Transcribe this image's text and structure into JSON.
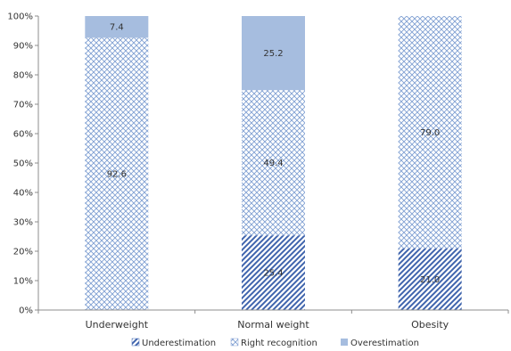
{
  "chart_data": {
    "type": "bar",
    "stacked": "percent",
    "categories": [
      "Underweight",
      "Normal weight",
      "Obesity"
    ],
    "series": [
      {
        "name": "Underestimation",
        "values": [
          null,
          25.4,
          21.0
        ],
        "labels": [
          "",
          "25.4",
          "21.0"
        ],
        "color": "#4a70b8",
        "pattern": "diagonal-stripes"
      },
      {
        "name": "Right recognition",
        "values": [
          92.6,
          49.4,
          79.0
        ],
        "labels": [
          "92.6",
          "49.4",
          "79.0"
        ],
        "color": "#8fa8d8",
        "pattern": "crosshatch"
      },
      {
        "name": "Overestimation",
        "values": [
          7.4,
          25.2,
          null
        ],
        "labels": [
          "7.4",
          "25.2",
          ""
        ],
        "color": "#a6bddf",
        "pattern": "solid"
      }
    ],
    "ylim": [
      0,
      100
    ],
    "yticks": [
      "0%",
      "10%",
      "20%",
      "30%",
      "40%",
      "50%",
      "60%",
      "70%",
      "80%",
      "90%",
      "100%"
    ],
    "grid": false,
    "legend": "bottom"
  }
}
